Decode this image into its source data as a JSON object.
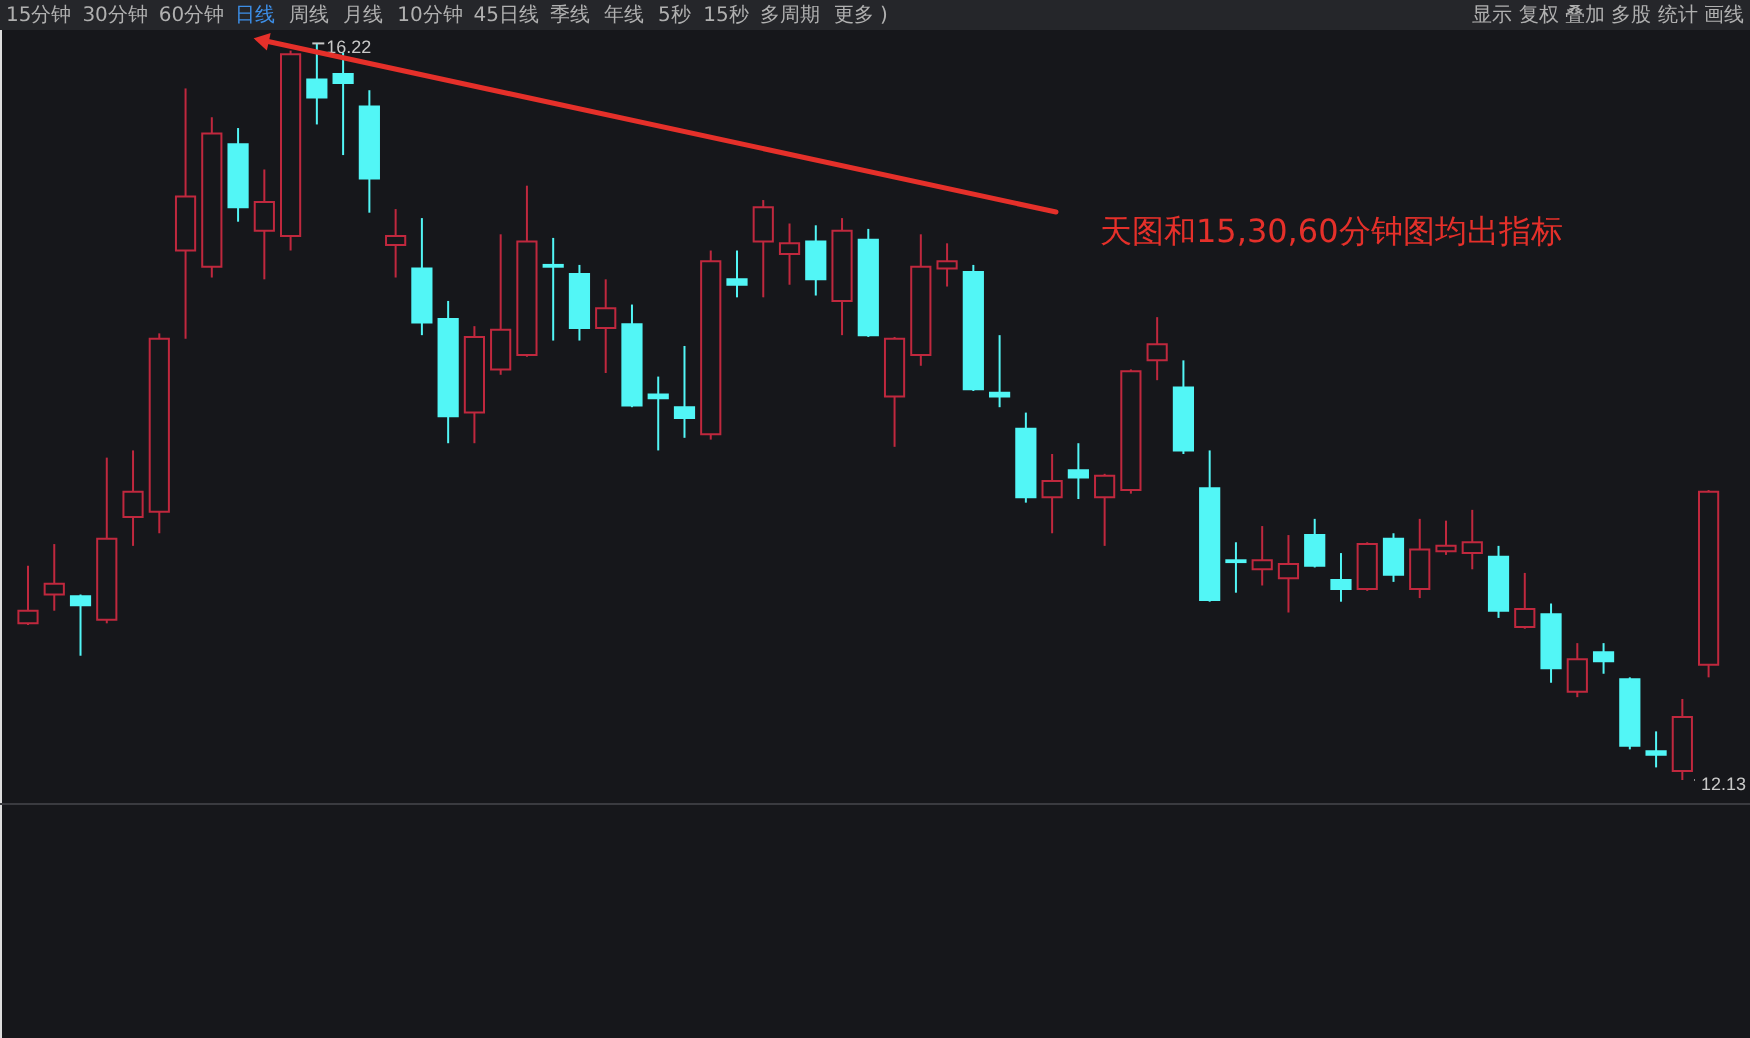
{
  "chart_data": {
    "type": "candlestick",
    "categories": [
      null,
      null,
      null,
      null,
      null,
      null,
      null,
      null,
      null,
      null,
      null,
      null,
      null,
      null,
      null,
      null,
      null,
      null,
      null,
      null,
      null,
      null,
      null,
      null,
      null,
      null,
      null,
      null,
      null,
      null,
      null,
      null,
      null,
      null,
      null,
      null,
      null,
      null,
      null,
      null,
      null,
      null,
      null,
      null,
      null,
      null,
      null,
      null,
      null,
      null,
      null,
      null,
      null,
      null,
      null,
      null,
      null,
      null,
      null,
      null,
      null,
      null,
      null,
      null,
      null
    ],
    "ohlc": [
      [
        13.0,
        13.32,
        12.99,
        13.07
      ],
      [
        13.16,
        13.44,
        13.07,
        13.22
      ],
      [
        13.15,
        13.16,
        12.82,
        13.1
      ],
      [
        13.02,
        13.92,
        13.0,
        13.47
      ],
      [
        13.59,
        13.96,
        13.43,
        13.73
      ],
      [
        13.62,
        14.61,
        13.5,
        14.58
      ],
      [
        15.07,
        15.97,
        14.58,
        15.37
      ],
      [
        14.98,
        15.81,
        14.92,
        15.72
      ],
      [
        15.66,
        15.75,
        15.23,
        15.31
      ],
      [
        15.18,
        15.52,
        14.91,
        15.34
      ],
      [
        15.15,
        16.18,
        15.07,
        16.16
      ],
      [
        16.02,
        16.22,
        15.77,
        15.92
      ],
      [
        16.05,
        16.17,
        15.6,
        16.0
      ],
      [
        15.87,
        15.96,
        15.28,
        15.47
      ],
      [
        15.1,
        15.3,
        14.92,
        15.15
      ],
      [
        14.97,
        15.25,
        14.6,
        14.67
      ],
      [
        14.69,
        14.79,
        14.0,
        14.15
      ],
      [
        14.17,
        14.65,
        14.0,
        14.59
      ],
      [
        14.41,
        15.16,
        14.38,
        14.63
      ],
      [
        14.49,
        15.43,
        14.48,
        15.12
      ],
      [
        14.99,
        15.14,
        14.57,
        14.98
      ],
      [
        14.94,
        14.99,
        14.57,
        14.64
      ],
      [
        14.64,
        14.91,
        14.39,
        14.75
      ],
      [
        14.66,
        14.77,
        14.2,
        14.21
      ],
      [
        14.27,
        14.37,
        13.96,
        14.25
      ],
      [
        14.2,
        14.54,
        14.03,
        14.14
      ],
      [
        14.05,
        15.07,
        14.02,
        15.01
      ],
      [
        14.91,
        15.07,
        14.81,
        14.88
      ],
      [
        15.12,
        15.35,
        14.81,
        15.31
      ],
      [
        15.05,
        15.22,
        14.88,
        15.11
      ],
      [
        15.12,
        15.21,
        14.82,
        14.91
      ],
      [
        14.79,
        15.25,
        14.6,
        15.18
      ],
      [
        15.13,
        15.19,
        14.59,
        14.6
      ],
      [
        14.26,
        14.59,
        13.98,
        14.58
      ],
      [
        14.49,
        15.16,
        14.43,
        14.98
      ],
      [
        14.97,
        15.11,
        14.87,
        15.01
      ],
      [
        14.95,
        14.99,
        14.29,
        14.3
      ],
      [
        14.28,
        14.6,
        14.2,
        14.26
      ],
      [
        14.08,
        14.17,
        13.67,
        13.7
      ],
      [
        13.7,
        13.94,
        13.5,
        13.79
      ],
      [
        13.85,
        14.0,
        13.69,
        13.81
      ],
      [
        13.7,
        13.83,
        13.43,
        13.82
      ],
      [
        13.74,
        14.41,
        13.72,
        14.4
      ],
      [
        14.46,
        14.7,
        14.35,
        14.55
      ],
      [
        14.31,
        14.46,
        13.94,
        13.96
      ],
      [
        13.75,
        13.96,
        13.12,
        13.13
      ],
      [
        13.35,
        13.45,
        13.17,
        13.34
      ],
      [
        13.3,
        13.54,
        13.21,
        13.35
      ],
      [
        13.25,
        13.49,
        13.06,
        13.33
      ],
      [
        13.49,
        13.58,
        13.31,
        13.32
      ],
      [
        13.24,
        13.39,
        13.12,
        13.19
      ],
      [
        13.19,
        13.45,
        13.18,
        13.44
      ],
      [
        13.47,
        13.5,
        13.23,
        13.27
      ],
      [
        13.19,
        13.58,
        13.14,
        13.41
      ],
      [
        13.4,
        13.57,
        13.38,
        13.43
      ],
      [
        13.39,
        13.63,
        13.3,
        13.45
      ],
      [
        13.37,
        13.43,
        13.03,
        13.07
      ],
      [
        12.98,
        13.28,
        12.97,
        13.08
      ],
      [
        13.05,
        13.11,
        12.67,
        12.75
      ],
      [
        12.62,
        12.89,
        12.59,
        12.8
      ],
      [
        12.84,
        12.89,
        12.72,
        12.79
      ],
      [
        12.69,
        12.7,
        12.3,
        12.32
      ],
      [
        12.29,
        12.4,
        12.2,
        12.27
      ],
      [
        12.18,
        12.58,
        12.13,
        12.48
      ],
      [
        12.77,
        13.74,
        12.7,
        13.73
      ]
    ],
    "colors": [
      "#c0283e",
      "#c0283e",
      "#52f6f6",
      "#c0283e",
      "#c0283e",
      "#c0283e",
      "#c0283e",
      "#c0283e",
      "#52f6f6",
      "#c0283e",
      "#c0283e",
      "#52f6f6",
      "#52f6f6",
      "#52f6f6",
      "#c0283e",
      "#52f6f6",
      "#52f6f6",
      "#c0283e",
      "#c0283e",
      "#c0283e",
      "#52f6f6",
      "#52f6f6",
      "#c0283e",
      "#52f6f6",
      "#52f6f6",
      "#52f6f6",
      "#c0283e",
      "#52f6f6",
      "#c0283e",
      "#c0283e",
      "#52f6f6",
      "#c0283e",
      "#52f6f6",
      "#c0283e",
      "#c0283e",
      "#c0283e",
      "#52f6f6",
      "#52f6f6",
      "#52f6f6",
      "#c0283e",
      "#52f6f6",
      "#c0283e",
      "#c0283e",
      "#c0283e",
      "#52f6f6",
      "#52f6f6",
      "#52f6f6",
      "#c0283e",
      "#c0283e",
      "#52f6f6",
      "#52f6f6",
      "#c0283e",
      "#52f6f6",
      "#c0283e",
      "#c0283e",
      "#c0283e",
      "#52f6f6",
      "#c0283e",
      "#52f6f6",
      "#c0283e",
      "#52f6f6",
      "#52f6f6",
      "#52f6f6",
      "#c0283e",
      "#c0283e"
    ],
    "tick_labels": false,
    "annotations": [
      "15分钟",
      "30分钟",
      "60分钟",
      "日线",
      "周线",
      "月线",
      "10分钟",
      "45日线",
      "季线",
      "年线",
      "5秒",
      "15秒",
      "多周期",
      "更多 )",
      "显示 复权 叠加 多股 统计 画线",
      "16.22",
      "12.13",
      "天图和15,30,60分钟图均出指标"
    ]
  }
}
